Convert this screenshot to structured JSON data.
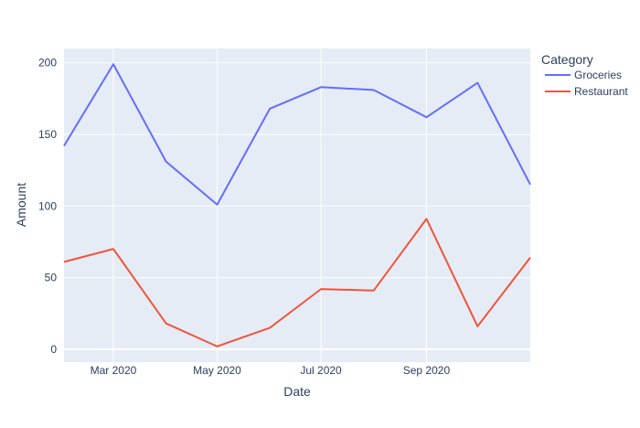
{
  "chart_data": {
    "type": "line",
    "xlabel": "Date",
    "ylabel": "Amount",
    "legend_title": "Category",
    "legend_position": "top-right",
    "grid": true,
    "x": [
      "2020-02-01",
      "2020-03-01",
      "2020-04-01",
      "2020-05-01",
      "2020-06-01",
      "2020-07-01",
      "2020-08-01",
      "2020-09-01",
      "2020-10-01",
      "2020-11-01"
    ],
    "xlim": [
      "2020-02-01",
      "2020-11-01"
    ],
    "ylim": [
      -9,
      210
    ],
    "x_ticks": [
      {
        "date": "2020-03-01",
        "label": "Mar 2020"
      },
      {
        "date": "2020-05-01",
        "label": "May 2020"
      },
      {
        "date": "2020-07-01",
        "label": "Jul 2020"
      },
      {
        "date": "2020-09-01",
        "label": "Sep 2020"
      }
    ],
    "y_ticks": [
      0,
      50,
      100,
      150,
      200
    ],
    "series": [
      {
        "name": "Groceries",
        "color": "#636efa",
        "values": [
          142,
          199,
          131,
          101,
          168,
          183,
          181,
          162,
          186,
          115
        ]
      },
      {
        "name": "Restaurant",
        "color": "#ef553b",
        "values": [
          61,
          70,
          18,
          2,
          15,
          42,
          41,
          91,
          16,
          64
        ]
      }
    ]
  }
}
